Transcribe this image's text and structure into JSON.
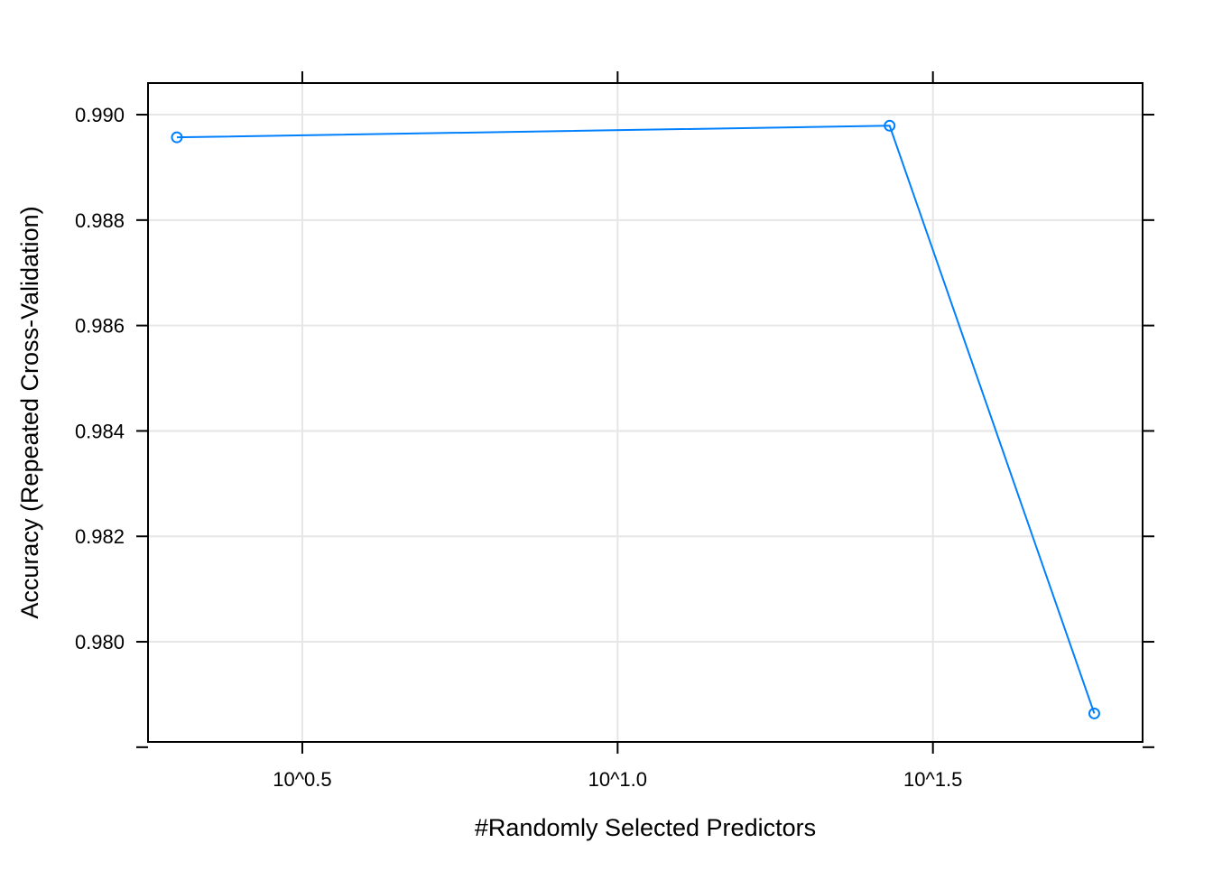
{
  "chart_data": {
    "type": "line",
    "title": "",
    "xlabel": "#Randomly Selected Predictors",
    "ylabel": "Accuracy (Repeated Cross-Validation)",
    "x_scale": "log10",
    "x_tick_labels": [
      "10^0.5",
      "10^1.0",
      "10^1.5"
    ],
    "x_tick_values": [
      3.162,
      10,
      31.623
    ],
    "xlim": [
      1.8,
      68.0
    ],
    "ylim": [
      0.9781,
      0.9906
    ],
    "y_ticks": [
      0.978,
      0.98,
      0.982,
      0.984,
      0.986,
      0.988,
      0.99
    ],
    "y_tick_labels": [
      "0.980",
      "0.982",
      "0.984",
      "0.986",
      "0.988",
      "0.990"
    ],
    "grid": true,
    "series": [
      {
        "x": [
          2,
          27,
          57
        ],
        "y": [
          0.98957,
          0.98979,
          0.97864
        ]
      }
    ],
    "colors": {
      "series": "#0080ff",
      "grid": "#e6e6e6",
      "axis": "#000000"
    }
  }
}
